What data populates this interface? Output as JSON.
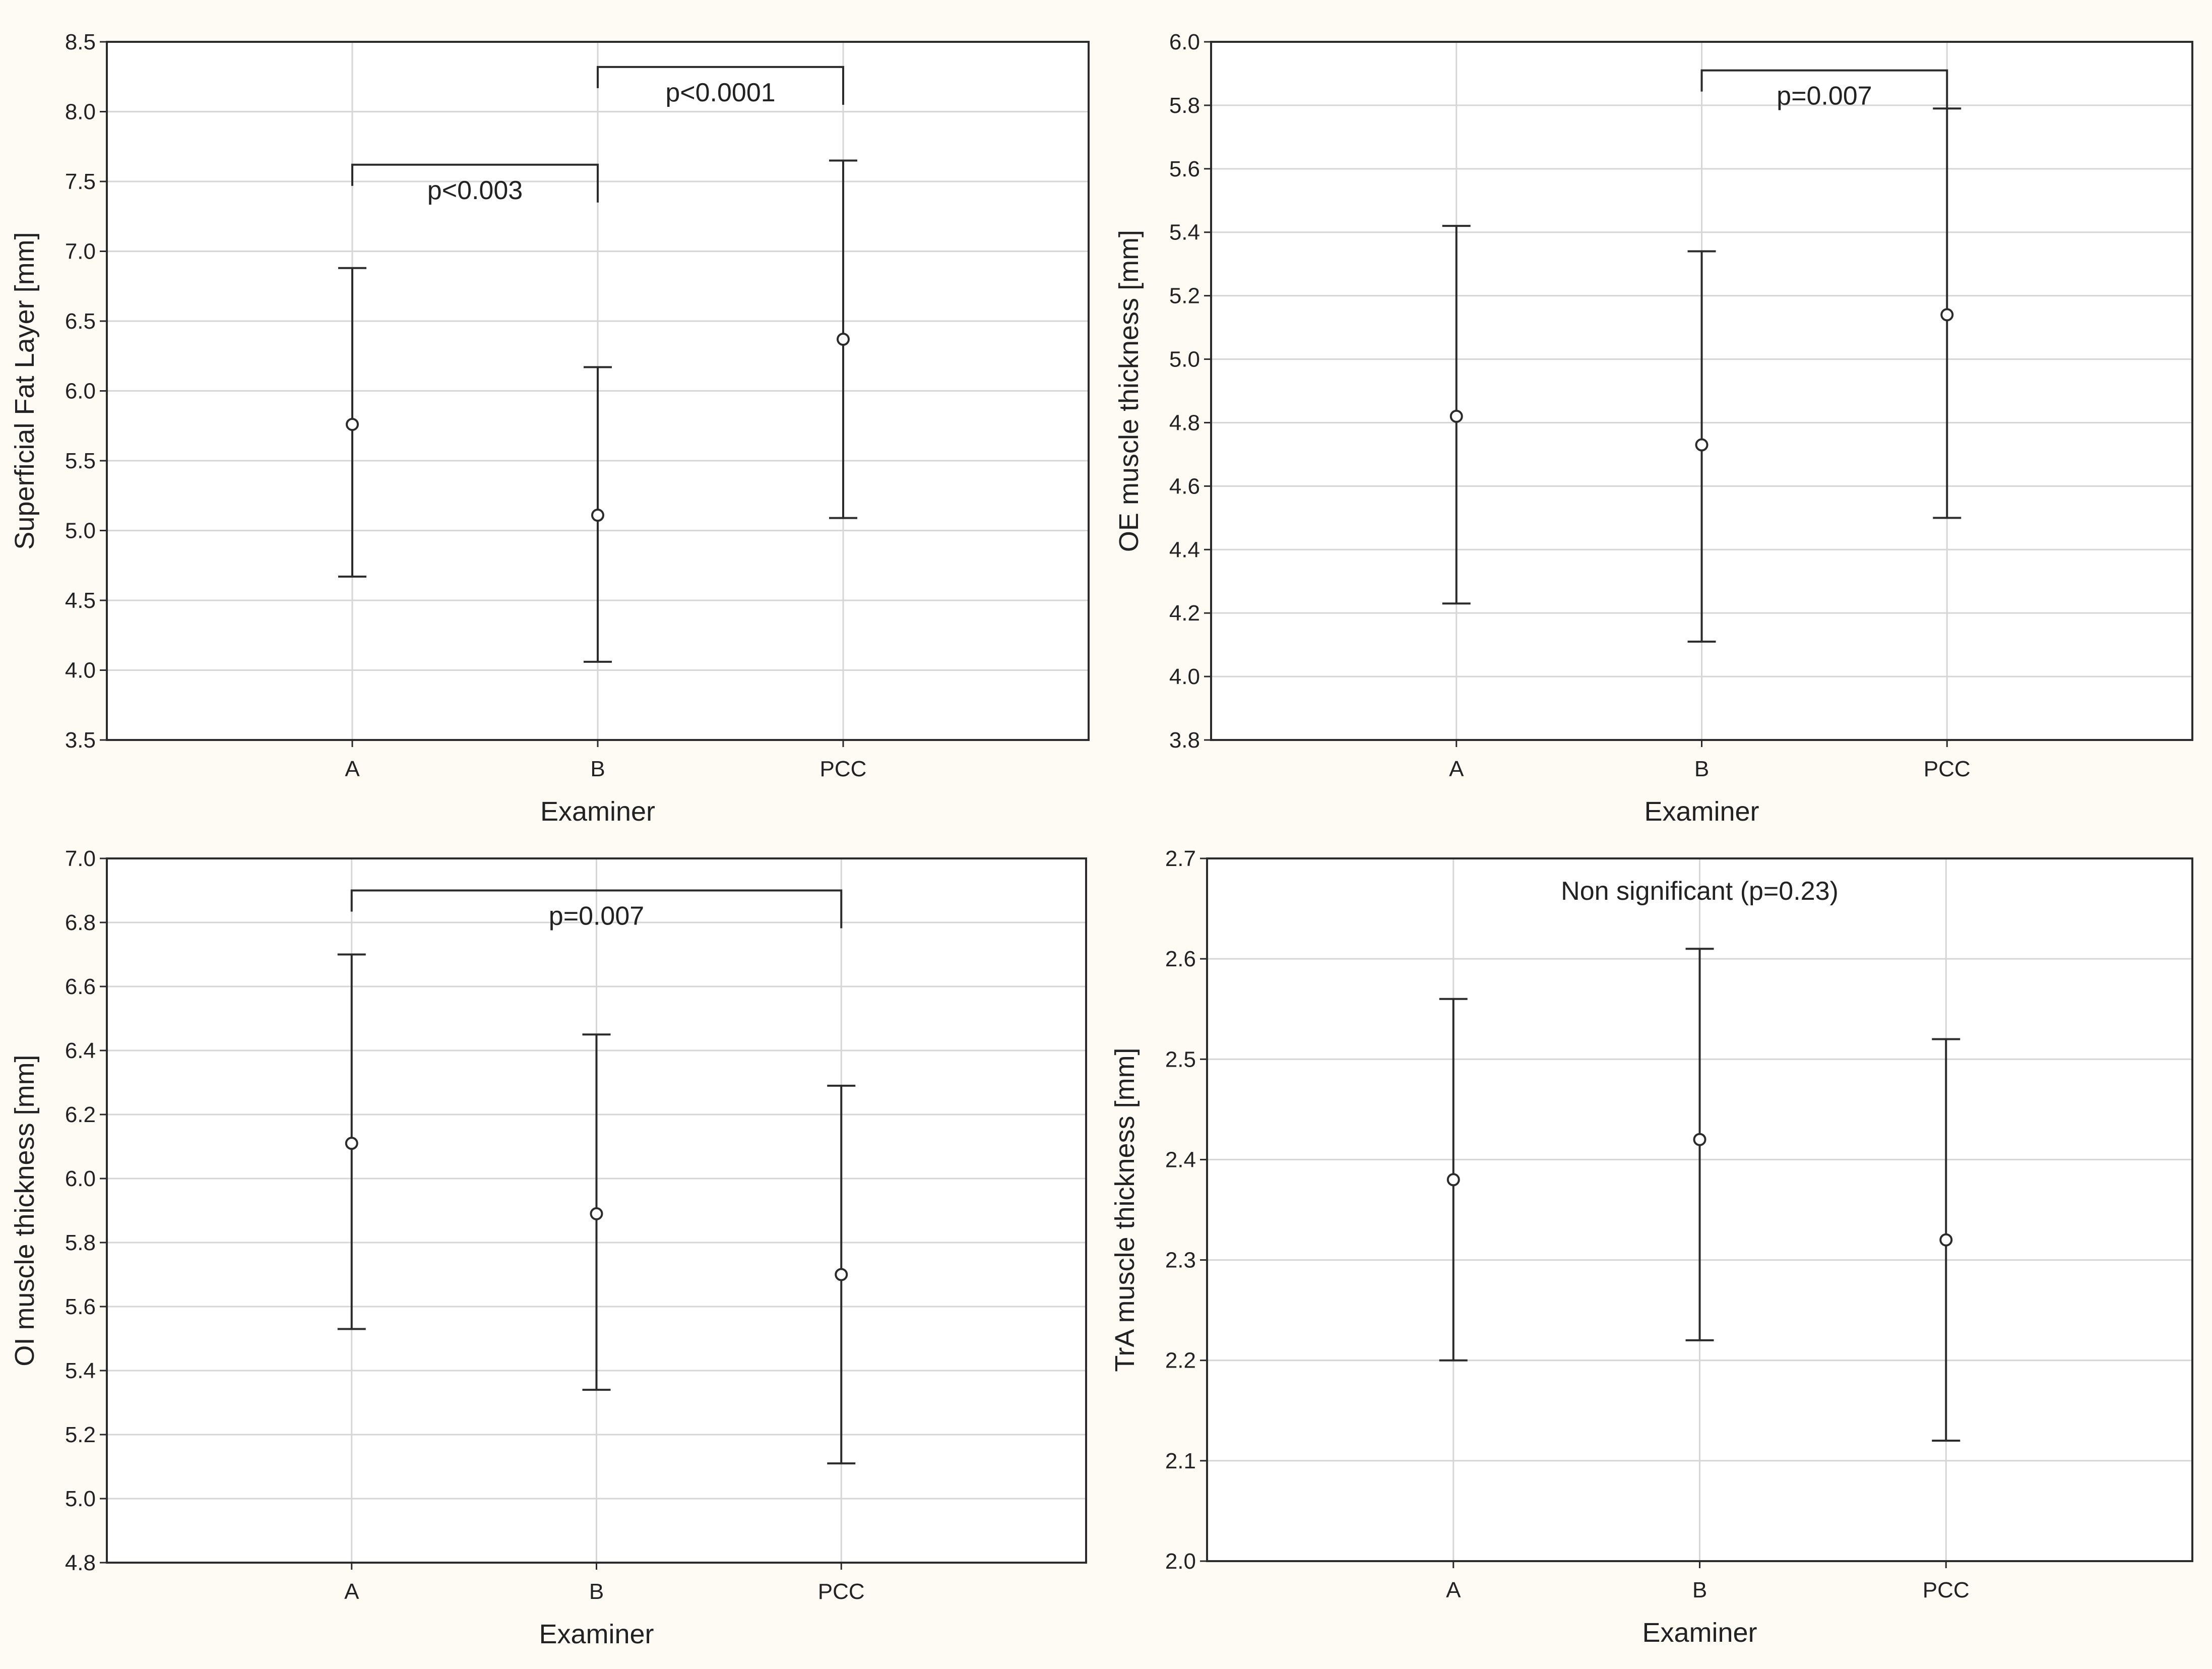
{
  "chart_data": [
    {
      "type": "errorbar",
      "title": "",
      "xlabel": "Examiner",
      "ylabel": "Superficial Fat Layer [mm]",
      "categories": [
        "A",
        "B",
        "PCC"
      ],
      "ylim": [
        3.5,
        8.5
      ],
      "yticks": [
        "3.5",
        "4.0",
        "4.5",
        "5.0",
        "5.5",
        "6.0",
        "6.5",
        "7.0",
        "7.5",
        "8.0",
        "8.5"
      ],
      "grid": true,
      "series": [
        {
          "mean": [
            5.76,
            5.11,
            6.37
          ],
          "lower": [
            4.67,
            4.06,
            5.09
          ],
          "upper": [
            6.88,
            6.17,
            7.65
          ]
        }
      ],
      "brackets": [
        {
          "from": "A",
          "to": "B",
          "level": 7.62,
          "label": "p<0.003",
          "label_below": true
        },
        {
          "from": "B",
          "to": "PCC",
          "level": 8.32,
          "label": "p<0.0001",
          "label_below": true
        }
      ]
    },
    {
      "type": "errorbar",
      "title": "",
      "xlabel": "Examiner",
      "ylabel": "OE muscle thickness [mm]",
      "categories": [
        "A",
        "B",
        "PCC"
      ],
      "ylim": [
        3.8,
        6.0
      ],
      "yticks": [
        "3.8",
        "4.0",
        "4.2",
        "4.4",
        "4.6",
        "4.8",
        "5.0",
        "5.2",
        "5.4",
        "5.6",
        "5.8",
        "6.0"
      ],
      "grid": true,
      "series": [
        {
          "mean": [
            4.82,
            4.73,
            5.14
          ],
          "lower": [
            4.23,
            4.11,
            4.5
          ],
          "upper": [
            5.42,
            5.34,
            5.79
          ]
        }
      ],
      "brackets": [
        {
          "from": "B",
          "to": "PCC",
          "level": 5.91,
          "label": "p=0.007",
          "label_below": true
        }
      ]
    },
    {
      "type": "errorbar",
      "title": "",
      "xlabel": "Examiner",
      "ylabel": "OI muscle thickness [mm]",
      "categories": [
        "A",
        "B",
        "PCC"
      ],
      "ylim": [
        4.8,
        7.0
      ],
      "yticks": [
        "4.8",
        "5.0",
        "5.2",
        "5.4",
        "5.6",
        "5.8",
        "6.0",
        "6.2",
        "6.4",
        "6.6",
        "6.8",
        "7.0"
      ],
      "grid": true,
      "series": [
        {
          "mean": [
            6.11,
            5.89,
            5.7
          ],
          "lower": [
            5.53,
            5.34,
            5.11
          ],
          "upper": [
            6.7,
            6.45,
            6.29
          ]
        }
      ],
      "brackets": [
        {
          "from": "A",
          "to": "PCC",
          "level": 6.9,
          "label": "p=0.007",
          "label_below": true
        }
      ]
    },
    {
      "type": "errorbar",
      "title": "",
      "xlabel": "Examiner",
      "ylabel": "TrA muscle thickness [mm]",
      "categories": [
        "A",
        "B",
        "PCC"
      ],
      "ylim": [
        2.0,
        2.7
      ],
      "yticks": [
        "2.0",
        "2.1",
        "2.2",
        "2.3",
        "2.4",
        "2.5",
        "2.6",
        "2.7"
      ],
      "grid": true,
      "series": [
        {
          "mean": [
            2.38,
            2.42,
            2.32
          ],
          "lower": [
            2.2,
            2.22,
            2.12
          ],
          "upper": [
            2.56,
            2.61,
            2.52
          ]
        }
      ],
      "brackets": [],
      "annotation": "Non significant (p=0.23)"
    }
  ]
}
